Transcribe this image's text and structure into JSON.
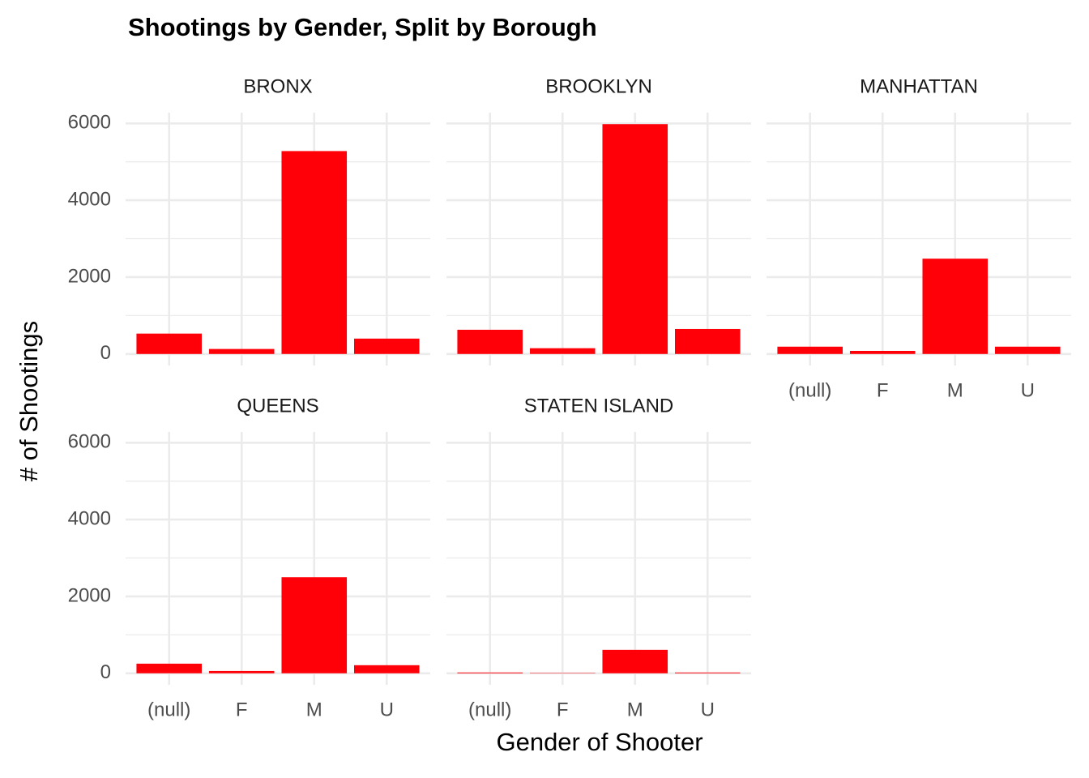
{
  "chart_data": {
    "type": "bar",
    "title": "Shootings by Gender, Split by Borough",
    "xlabel": "Gender of Shooter",
    "ylabel": "# of Shootings",
    "categories": [
      "(null)",
      "F",
      "M",
      "U"
    ],
    "color": "#ff0008",
    "ylim": [
      -300,
      6280
    ],
    "yticks": [
      0,
      2000,
      4000,
      6000
    ],
    "yminorticks": [
      1000,
      3000,
      5000
    ],
    "grid": true,
    "facets": [
      {
        "name": "BRONX",
        "values": [
          530,
          130,
          5280,
          400
        ]
      },
      {
        "name": "BROOKLYN",
        "values": [
          630,
          150,
          5980,
          650
        ]
      },
      {
        "name": "MANHATTAN",
        "values": [
          190,
          80,
          2480,
          190
        ]
      },
      {
        "name": "QUEENS",
        "values": [
          250,
          60,
          2500,
          210
        ]
      },
      {
        "name": "STATEN ISLAND",
        "values": [
          20,
          10,
          610,
          20
        ]
      }
    ]
  }
}
